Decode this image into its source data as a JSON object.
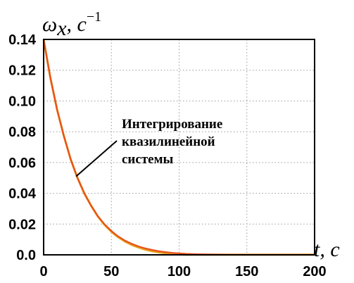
{
  "chart_data": {
    "type": "line",
    "xlim": [
      0,
      200
    ],
    "ylim": [
      0,
      0.14
    ],
    "x_ticks": [
      "0",
      "50",
      "100",
      "150",
      "200"
    ],
    "y_ticks": [
      "0.0",
      "0.02",
      "0.04",
      "0.06",
      "0.08",
      "0.10",
      "0.12",
      "0.14"
    ],
    "grid": true,
    "ylabel": {
      "symbol": "ω",
      "subscript": "x",
      "sep": ", ",
      "unit": "c",
      "exponent": "−1"
    },
    "xlabel": {
      "symbol": "t",
      "sep": ", ",
      "unit": "c"
    },
    "annotation": {
      "lines": [
        "Интегрирование",
        "квазилинейной",
        "системы"
      ],
      "points_to": [
        24,
        0.051
      ]
    },
    "series": [
      {
        "color": "#e8a41c",
        "x": [
          0,
          5,
          10,
          15,
          20,
          25,
          30,
          35,
          40,
          45,
          50,
          55,
          60,
          65,
          70,
          75,
          80,
          85,
          90,
          95,
          100,
          105,
          110,
          115,
          120,
          130,
          140,
          150,
          160,
          170,
          180,
          190,
          200
        ],
        "y": [
          0.14,
          0.115,
          0.094,
          0.077,
          0.062,
          0.05,
          0.04,
          0.032,
          0.025,
          0.0195,
          0.015,
          0.0115,
          0.0087,
          0.0065,
          0.0048,
          0.0034,
          0.0024,
          0.0016,
          0.001,
          0.0006,
          0.0003,
          0.00015,
          0.0001,
          0.0001,
          0.0001,
          0.0001,
          0.0001,
          0.0001,
          0.0001,
          0.0001,
          0.0001,
          0.0001,
          0.0001
        ]
      },
      {
        "color": "#e8501c",
        "x": [
          0,
          5,
          10,
          15,
          20,
          25,
          30,
          35,
          40,
          45,
          50,
          55,
          60,
          65,
          70,
          75,
          80,
          85,
          90,
          95,
          100,
          105,
          110,
          115,
          120,
          130,
          140,
          150,
          160,
          170,
          180,
          190,
          200
        ],
        "y": [
          0.14,
          0.115,
          0.094,
          0.077,
          0.062,
          0.05,
          0.04,
          0.032,
          0.0252,
          0.0198,
          0.0155,
          0.012,
          0.0093,
          0.0072,
          0.0055,
          0.0042,
          0.0032,
          0.0024,
          0.0018,
          0.0013,
          0.001,
          0.0007,
          0.0005,
          0.0004,
          0.0003,
          0.0002,
          0.0001,
          0.0001,
          0.0001,
          0.0001,
          0.0001,
          0.0001,
          0.0001
        ]
      }
    ]
  }
}
